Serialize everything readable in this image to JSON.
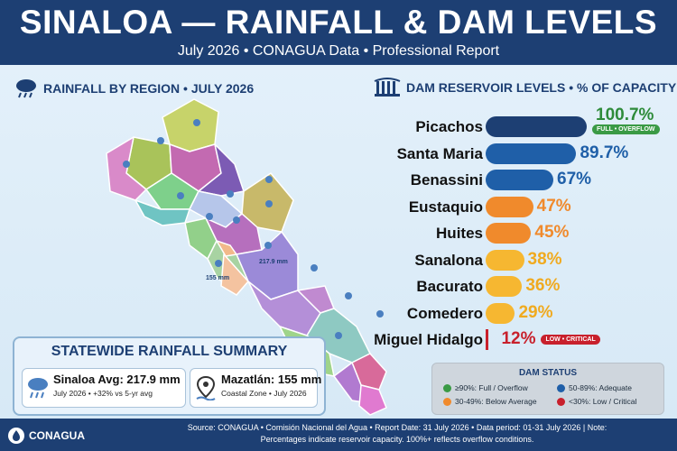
{
  "header": {
    "title": "SINALOA — RAINFALL & DAM LEVELS",
    "subtitle": "July 2026 • CONAGUA Data • Professional Report"
  },
  "rainfall_section": {
    "title": "RAINFALL BY REGION • JULY 2026",
    "labels": [
      "217.9 mm",
      "155 mm"
    ]
  },
  "dams_section": {
    "title": "DAM RESERVOIR LEVELS • % OF CAPACITY",
    "dams": [
      {
        "name": "Picachos",
        "value": 100.7,
        "display": "100.7%",
        "color": "#1d3f73",
        "text_color": "#2e8b3a",
        "badge": "FULL • OVERFLOW",
        "badge_color": "#3a9a45"
      },
      {
        "name": "Santa Maria",
        "value": 89.7,
        "display": "89.7%",
        "color": "#1f5fa8",
        "text_color": "#1f5fa8"
      },
      {
        "name": "Benassini",
        "value": 67,
        "display": "67%",
        "color": "#1f5fa8",
        "text_color": "#1f5fa8"
      },
      {
        "name": "Eustaquio",
        "value": 47,
        "display": "47%",
        "color": "#f08a2c",
        "text_color": "#f08a2c"
      },
      {
        "name": "Huites",
        "value": 45,
        "display": "45%",
        "color": "#f08a2c",
        "text_color": "#f08a2c"
      },
      {
        "name": "Sanalona",
        "value": 38,
        "display": "38%",
        "color": "#f6b731",
        "text_color": "#f0aa1f"
      },
      {
        "name": "Bacurato",
        "value": 36,
        "display": "36%",
        "color": "#f6b731",
        "text_color": "#f0aa1f"
      },
      {
        "name": "Comedero",
        "value": 29,
        "display": "29%",
        "color": "#f6b731",
        "text_color": "#f0aa1f"
      },
      {
        "name": "Miguel Hidalgo",
        "value": 12,
        "display": "12%",
        "color": "#c8202c",
        "text_color": "#c8202c",
        "badge": "LOW • CRITICAL",
        "badge_color": "#c8202c"
      }
    ]
  },
  "status_legend": {
    "title": "DAM STATUS",
    "items": [
      {
        "label": "≥90%: Full / Overflow",
        "color": "#3a9a45"
      },
      {
        "label": "50-89%: Adequate",
        "color": "#1f5fa8"
      },
      {
        "label": "30-49%: Below Average",
        "color": "#f08a2c"
      },
      {
        "label": "<30%: Low / Critical",
        "color": "#c8202c"
      }
    ]
  },
  "summary": {
    "title": "STATEWIDE RAINFALL SUMMARY",
    "card1_big": "Sinaloa Avg: 217.9 mm",
    "card1_small": "July 2026 • +32% vs 5-yr avg",
    "card2_big": "Mazatlán: 155 mm",
    "card2_small": "Coastal Zone • July 2026"
  },
  "footer": {
    "logo_text": "CONAGUA",
    "line1": "Source: CONAGUA • Comisión Nacional del Agua • Report Date: 31 July 2026 • Data period: 01-31 July 2026 | Note:",
    "line2": "Percentages indicate reservoir capacity. 100%+ reflects overflow conditions."
  }
}
